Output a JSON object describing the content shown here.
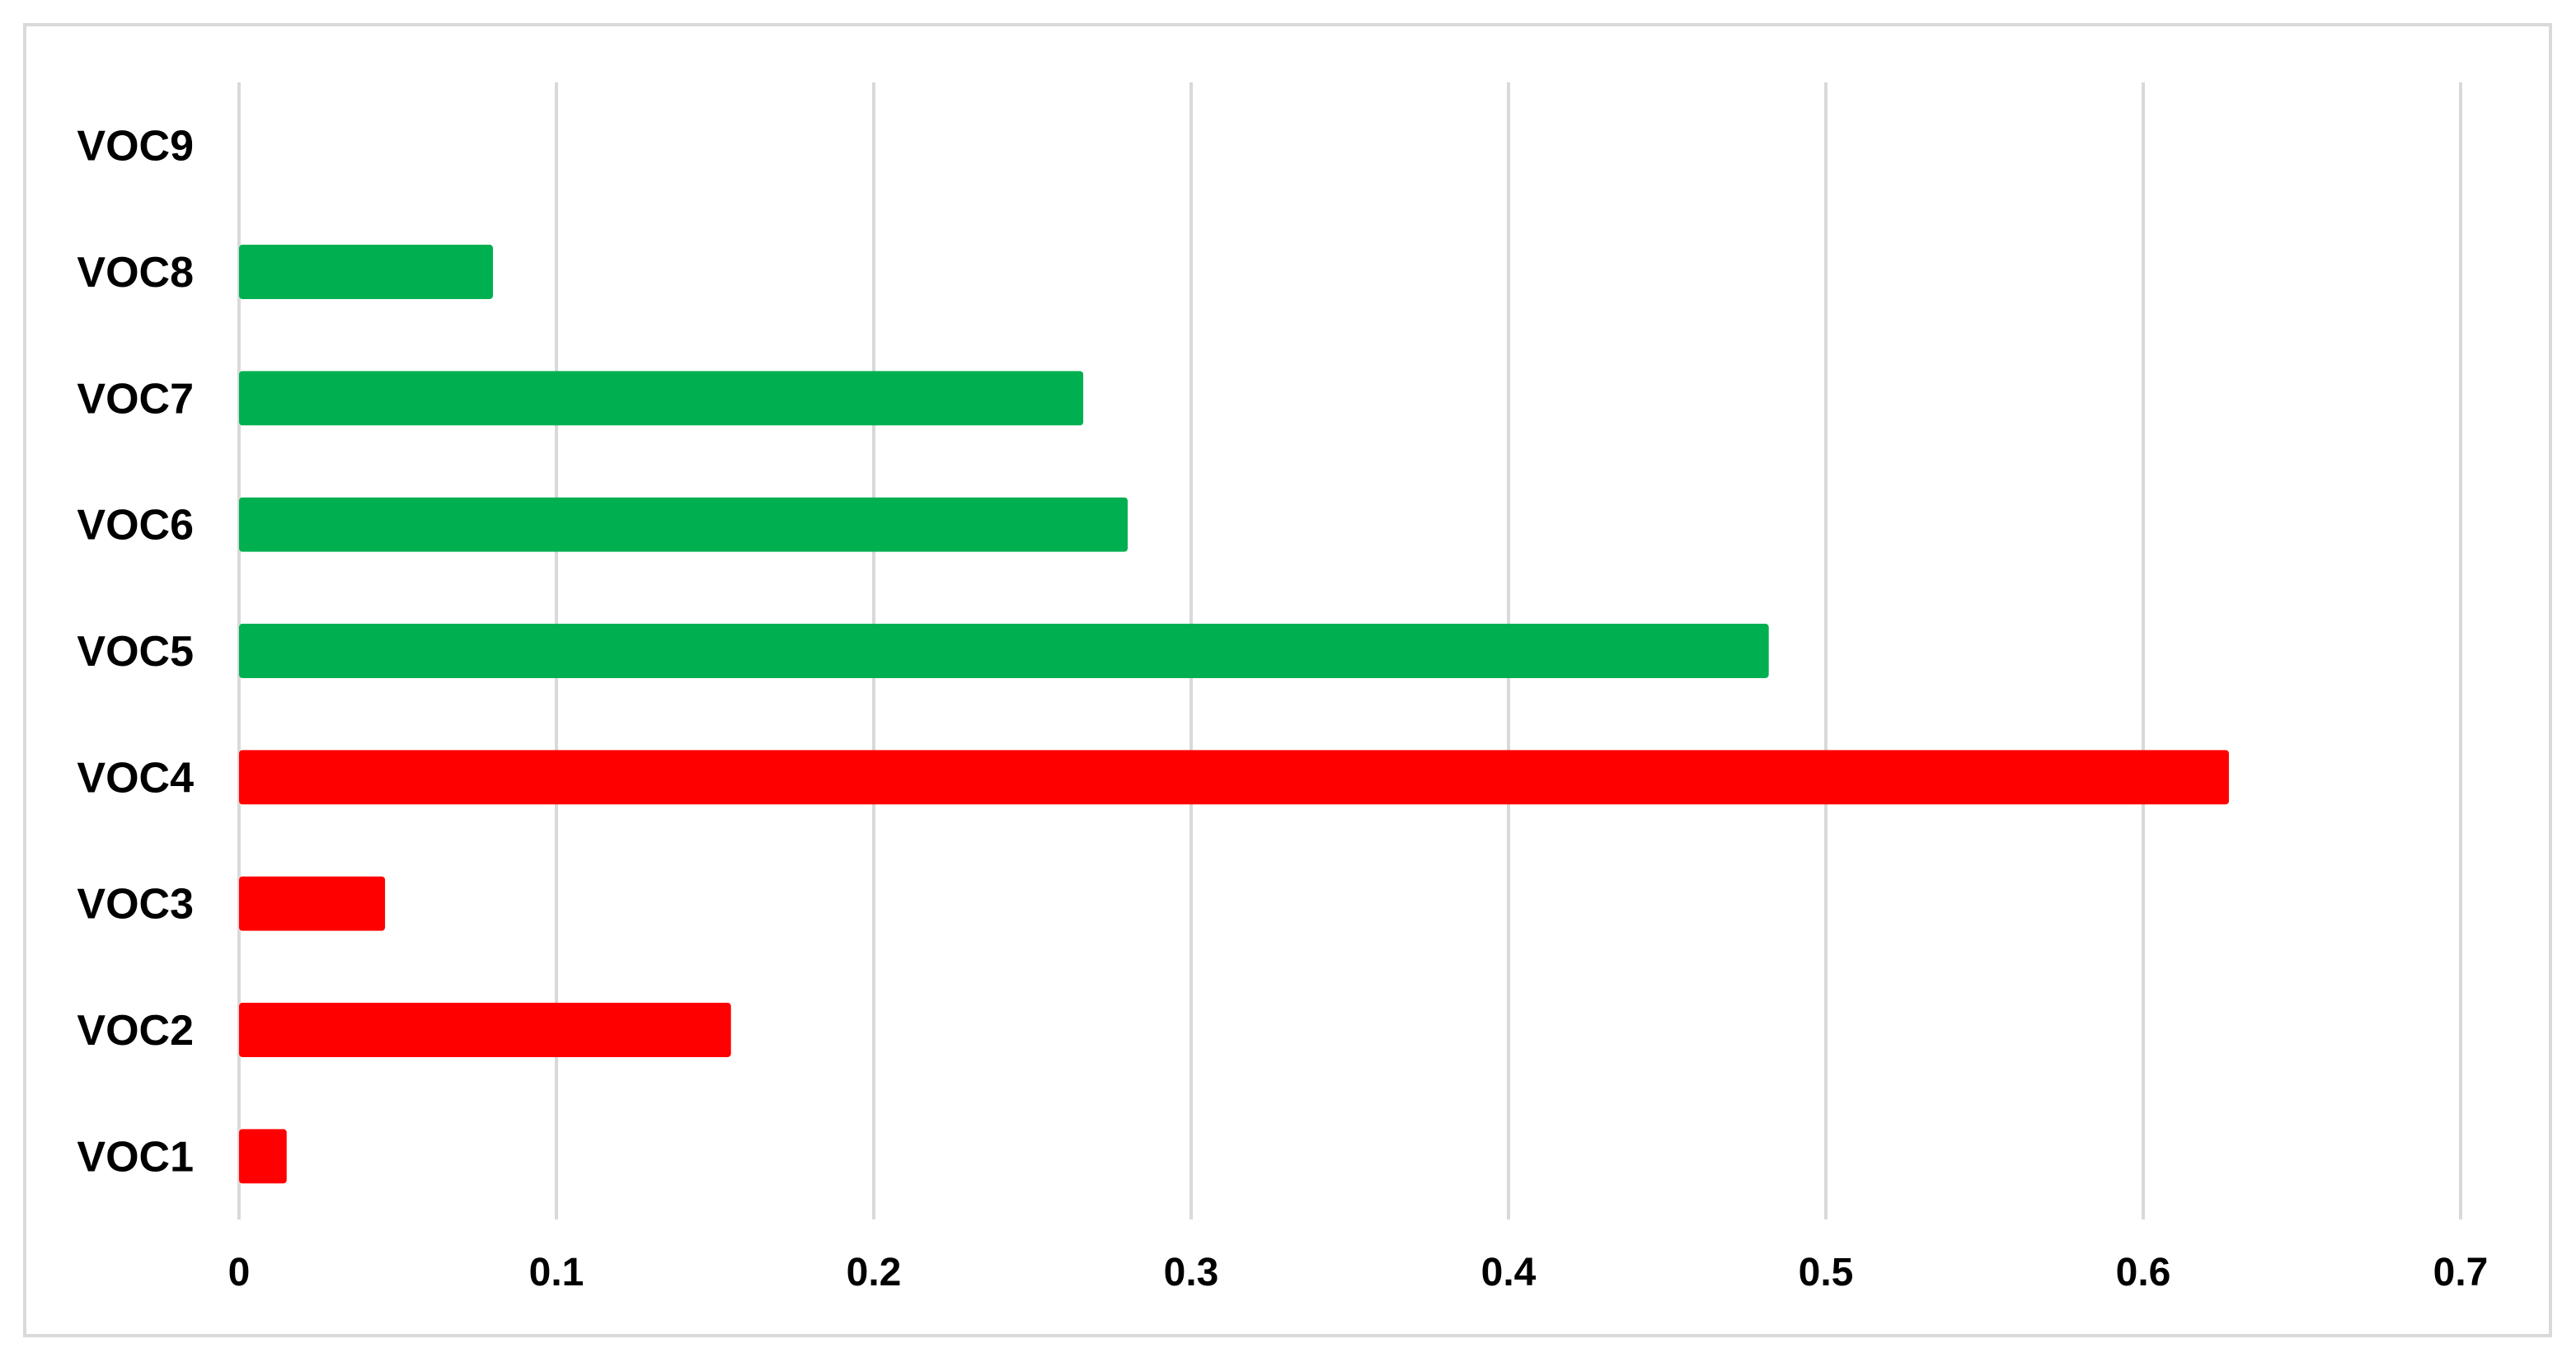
{
  "chart_data": {
    "type": "bar",
    "orientation": "horizontal",
    "title": "",
    "xlabel": "",
    "ylabel": "",
    "categories": [
      "VOC1",
      "VOC2",
      "VOC3",
      "VOC4",
      "VOC5",
      "VOC6",
      "VOC7",
      "VOC8",
      "VOC9"
    ],
    "values": [
      0.015,
      0.155,
      0.046,
      0.627,
      0.482,
      0.28,
      0.266,
      0.08,
      0
    ],
    "bar_colors": [
      "#ff0000",
      "#ff0000",
      "#ff0000",
      "#ff0000",
      "#00b050",
      "#00b050",
      "#00b050",
      "#00b050",
      "#00b050"
    ],
    "xlim": [
      0,
      0.7
    ],
    "xticks": [
      0,
      0.1,
      0.2,
      0.3,
      0.4,
      0.5,
      0.6,
      0.7
    ],
    "xtick_labels": [
      "0",
      "0.1",
      "0.2",
      "0.3",
      "0.4",
      "0.5",
      "0.6",
      "0.7"
    ],
    "grid": "vertical",
    "grid_color": "#d9d9d9",
    "legend": "none"
  }
}
